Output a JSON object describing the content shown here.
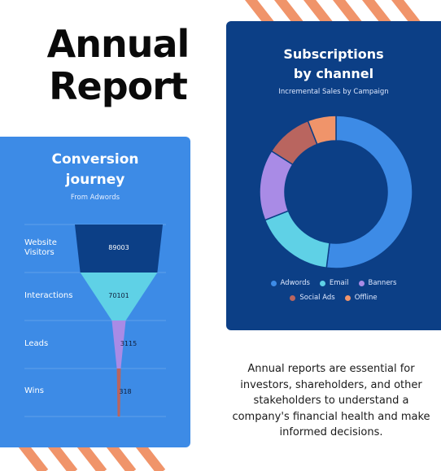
{
  "headline": {
    "line1": "Annual",
    "line2": "Report"
  },
  "colors": {
    "stripe": "#f0946a",
    "funnel_card_bg": "#3d8be6",
    "donut_card_bg": "#0c3f86"
  },
  "chart_data": [
    {
      "type": "funnel",
      "title_line1": "Conversion",
      "title_line2": "journey",
      "subtitle": "From Adwords",
      "stages": [
        {
          "label_line1": "Website",
          "label_line2": "Visitors",
          "value": 89003,
          "value_text": "89003",
          "color": "#0c3f86"
        },
        {
          "label_line1": "Interactions",
          "label_line2": "",
          "value": 70101,
          "value_text": "70101",
          "color": "#5fd1e6"
        },
        {
          "label_line1": "Leads",
          "label_line2": "",
          "value": 3115,
          "value_text": "3115",
          "color": "#a98be6"
        },
        {
          "label_line1": "Wins",
          "label_line2": "",
          "value": 318,
          "value_text": "318",
          "color": "#b9655f"
        }
      ]
    },
    {
      "type": "pie",
      "donut": true,
      "title_line1": "Subscriptions",
      "title_line2": "by channel",
      "subtitle": "Incremental Sales by Campaign",
      "legend_position": "bottom",
      "slices": [
        {
          "name": "Adwords",
          "value": 52,
          "color": "#3d8be6"
        },
        {
          "name": "Email",
          "value": 17,
          "color": "#5fd1e6"
        },
        {
          "name": "Banners",
          "value": 15,
          "color": "#a98be6"
        },
        {
          "name": "Social Ads",
          "value": 10,
          "color": "#b9655f"
        },
        {
          "name": "Offline",
          "value": 6,
          "color": "#f0946a"
        }
      ]
    }
  ],
  "body_text": "Annual reports are essential for investors, shareholders, and other stakeholders to understand a company's financial health and make informed decisions."
}
